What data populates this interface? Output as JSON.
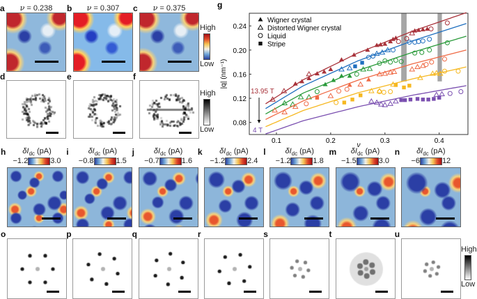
{
  "panels_top": [
    {
      "label": "a",
      "nu_prefix": "ν",
      "nu_value": " = 0.238"
    },
    {
      "label": "b",
      "nu_prefix": "ν",
      "nu_value": " = 0.307"
    },
    {
      "label": "c",
      "nu_prefix": "ν",
      "nu_value": " = 0.375"
    }
  ],
  "panels_fft_top": [
    {
      "label": "d"
    },
    {
      "label": "e"
    },
    {
      "label": "f"
    }
  ],
  "colorbar_color": {
    "high": "High",
    "low": "Low"
  },
  "colorbar_gray": {
    "high": "High",
    "low": "Low"
  },
  "panels_maps": [
    {
      "label": "h",
      "unit_main": "δI",
      "unit_sub": "dc",
      "unit_rest": " (pA)",
      "min": "−1.2",
      "max": "3.0"
    },
    {
      "label": "i",
      "unit_main": "δI",
      "unit_sub": "dc",
      "unit_rest": " (pA)",
      "min": "−0.8",
      "max": "1.5"
    },
    {
      "label": "j",
      "unit_main": "δI",
      "unit_sub": "dc",
      "unit_rest": " (pA)",
      "min": "−0.7",
      "max": "1.6"
    },
    {
      "label": "k",
      "unit_main": "δI",
      "unit_sub": "dc",
      "unit_rest": " (pA)",
      "min": "−1.2",
      "max": "2.4"
    },
    {
      "label": "l",
      "unit_main": "δI",
      "unit_sub": "dc",
      "unit_rest": " (pA)",
      "min": "−1.2",
      "max": "1.8"
    },
    {
      "label": "m",
      "unit_main": "δI",
      "unit_sub": "dc",
      "unit_rest": " (pA)",
      "min": "−1.5",
      "max": "3.0"
    },
    {
      "label": "n",
      "unit_main": "δI",
      "unit_sub": "dc",
      "unit_rest": " (pA)",
      "min": "−6",
      "max": "12"
    }
  ],
  "panels_fft": [
    {
      "label": "o"
    },
    {
      "label": "p"
    },
    {
      "label": "q"
    },
    {
      "label": "r"
    },
    {
      "label": "s"
    },
    {
      "label": "t"
    },
    {
      "label": "u"
    }
  ],
  "chart_data": {
    "panel_label": "g",
    "type": "scatter",
    "xlabel": "ν",
    "ylabel": "|q| (nm⁻¹)",
    "xlim": [
      0.05,
      0.453
    ],
    "ylim": [
      0.06,
      0.261
    ],
    "xticks": [
      "0.1",
      "0.2",
      "0.3",
      "0.4"
    ],
    "yticks": [
      "0.08",
      "0.12",
      "0.16",
      "0.20",
      "0.24"
    ],
    "grid": false,
    "legend_position": "top-left",
    "legend": [
      {
        "marker": "filled-triangle",
        "label": "Wigner crystal"
      },
      {
        "marker": "open-triangle",
        "label": "Distorted Wigner crystal"
      },
      {
        "marker": "open-circle",
        "label": "Liquid"
      },
      {
        "marker": "filled-square",
        "label": "Stripe"
      }
    ],
    "annotations": {
      "top_field": "13.95 T",
      "bottom_field": "4 T"
    },
    "shaded_bands": [
      {
        "x": [
          0.33,
          0.34
        ],
        "y": [
          0.148,
          0.261
        ]
      },
      {
        "x": [
          0.397,
          0.405
        ],
        "y": [
          0.148,
          0.261
        ]
      }
    ],
    "series": [
      {
        "color": "#a8323a",
        "fit": [
          [
            0.08,
            0.111
          ],
          [
            0.15,
            0.151
          ],
          [
            0.25,
            0.195
          ],
          [
            0.35,
            0.231
          ],
          [
            0.45,
            0.262
          ]
        ],
        "filled-triangle": [
          [
            0.135,
            0.144
          ],
          [
            0.147,
            0.148
          ],
          [
            0.16,
            0.153
          ],
          [
            0.175,
            0.161
          ],
          [
            0.188,
            0.164
          ],
          [
            0.2,
            0.168
          ],
          [
            0.22,
            0.184
          ],
          [
            0.243,
            0.192
          ],
          [
            0.268,
            0.2
          ],
          [
            0.285,
            0.208
          ],
          [
            0.292,
            0.209
          ],
          [
            0.3,
            0.21
          ],
          [
            0.31,
            0.214
          ],
          [
            0.315,
            0.218
          ],
          [
            0.32,
            0.22
          ],
          [
            0.355,
            0.232
          ],
          [
            0.362,
            0.233
          ],
          [
            0.37,
            0.234
          ],
          [
            0.378,
            0.235
          ]
        ],
        "open-triangle": [
          [
            0.093,
            0.118
          ],
          [
            0.114,
            0.132
          ],
          [
            0.16,
            0.16
          ],
          [
            0.35,
            0.228
          ]
        ],
        "open-circle": [
          [
            0.325,
            0.214
          ],
          [
            0.34,
            0.219
          ],
          [
            0.385,
            0.235
          ],
          [
            0.415,
            0.245
          ]
        ],
        "filled-square": []
      },
      {
        "color": "#1f6fbf",
        "fit": [
          [
            0.08,
            0.103
          ],
          [
            0.15,
            0.141
          ],
          [
            0.25,
            0.182
          ],
          [
            0.35,
            0.215
          ],
          [
            0.45,
            0.244
          ]
        ],
        "filled-triangle": [],
        "open-triangle": [
          [
            0.22,
            0.168
          ],
          [
            0.235,
            0.17
          ],
          [
            0.285,
            0.194
          ],
          [
            0.295,
            0.196
          ],
          [
            0.305,
            0.2
          ]
        ],
        "open-circle": [
          [
            0.27,
            0.188
          ],
          [
            0.278,
            0.19
          ],
          [
            0.315,
            0.2
          ],
          [
            0.345,
            0.213
          ],
          [
            0.355,
            0.213
          ],
          [
            0.362,
            0.214
          ],
          [
            0.37,
            0.215
          ],
          [
            0.382,
            0.218
          ]
        ],
        "filled-square": [
          [
            0.245,
            0.173
          ],
          [
            0.258,
            0.179
          ]
        ]
      },
      {
        "color": "#2a9a3a",
        "fit": [
          [
            0.08,
            0.094
          ],
          [
            0.15,
            0.129
          ],
          [
            0.25,
            0.166
          ],
          [
            0.35,
            0.196
          ],
          [
            0.45,
            0.223
          ]
        ],
        "filled-triangle": [
          [
            0.19,
            0.143
          ],
          [
            0.205,
            0.15
          ],
          [
            0.22,
            0.157
          ],
          [
            0.235,
            0.157
          ]
        ],
        "open-triangle": [
          [
            0.115,
            0.112
          ],
          [
            0.13,
            0.11
          ],
          [
            0.145,
            0.122
          ],
          [
            0.16,
            0.122
          ],
          [
            0.26,
            0.168
          ],
          [
            0.272,
            0.169
          ]
        ],
        "open-circle": [
          [
            0.175,
            0.131
          ],
          [
            0.248,
            0.16
          ],
          [
            0.29,
            0.178
          ],
          [
            0.3,
            0.182
          ],
          [
            0.31,
            0.18
          ],
          [
            0.32,
            0.183
          ],
          [
            0.33,
            0.181
          ],
          [
            0.355,
            0.195
          ],
          [
            0.368,
            0.196
          ],
          [
            0.382,
            0.2
          ],
          [
            0.415,
            0.212
          ]
        ],
        "filled-square": []
      },
      {
        "color": "#ef6a45",
        "fit": [
          [
            0.08,
            0.085
          ],
          [
            0.15,
            0.116
          ],
          [
            0.25,
            0.15
          ],
          [
            0.35,
            0.177
          ],
          [
            0.45,
            0.2
          ]
        ],
        "filled-triangle": [
          [
            0.235,
            0.142
          ],
          [
            0.27,
            0.151
          ]
        ],
        "open-triangle": [
          [
            0.097,
            0.1
          ],
          [
            0.115,
            0.097
          ],
          [
            0.135,
            0.106
          ],
          [
            0.2,
            0.124
          ],
          [
            0.255,
            0.143
          ],
          [
            0.29,
            0.16
          ],
          [
            0.3,
            0.161
          ],
          [
            0.31,
            0.163
          ],
          [
            0.317,
            0.164
          ],
          [
            0.35,
            0.168
          ],
          [
            0.36,
            0.172
          ],
          [
            0.37,
            0.174
          ]
        ],
        "open-circle": [
          [
            0.155,
            0.111
          ],
          [
            0.215,
            0.132
          ],
          [
            0.23,
            0.135
          ],
          [
            0.376,
            0.176
          ],
          [
            0.386,
            0.18
          ],
          [
            0.41,
            0.185
          ]
        ],
        "filled-square": [
          [
            0.175,
            0.121
          ]
        ]
      },
      {
        "color": "#f6b821",
        "fit": [
          [
            0.08,
            0.073
          ],
          [
            0.15,
            0.1
          ],
          [
            0.25,
            0.129
          ],
          [
            0.35,
            0.152
          ],
          [
            0.45,
            0.172
          ]
        ],
        "filled-triangle": [],
        "open-triangle": [
          [
            0.275,
            0.132
          ],
          [
            0.29,
            0.132
          ],
          [
            0.315,
            0.143
          ],
          [
            0.365,
            0.154
          ],
          [
            0.388,
            0.161
          ],
          [
            0.395,
            0.162
          ],
          [
            0.402,
            0.161
          ]
        ],
        "open-circle": [
          [
            0.21,
            0.113
          ],
          [
            0.29,
            0.131
          ],
          [
            0.298,
            0.13
          ],
          [
            0.31,
            0.131
          ],
          [
            0.41,
            0.165
          ],
          [
            0.435,
            0.165
          ]
        ],
        "filled-square": [
          [
            0.225,
            0.113
          ],
          [
            0.24,
            0.118
          ],
          [
            0.255,
            0.125
          ],
          [
            0.32,
            0.142
          ],
          [
            0.335,
            0.138
          ],
          [
            0.345,
            0.141
          ]
        ]
      },
      {
        "color": "#7a4fb0",
        "fit": [
          [
            0.08,
            0.061
          ],
          [
            0.15,
            0.083
          ],
          [
            0.25,
            0.106
          ],
          [
            0.35,
            0.125
          ],
          [
            0.45,
            0.141
          ]
        ],
        "filled-triangle": [],
        "open-triangle": [
          [
            0.275,
            0.115
          ],
          [
            0.285,
            0.113
          ],
          [
            0.293,
            0.11
          ],
          [
            0.3,
            0.109
          ],
          [
            0.31,
            0.111
          ],
          [
            0.32,
            0.115
          ],
          [
            0.395,
            0.126
          ],
          [
            0.405,
            0.127
          ]
        ],
        "open-circle": [
          [
            0.42,
            0.128
          ],
          [
            0.44,
            0.131
          ]
        ],
        "filled-square": [
          [
            0.33,
            0.117
          ],
          [
            0.337,
            0.117
          ],
          [
            0.347,
            0.118
          ],
          [
            0.36,
            0.119
          ],
          [
            0.37,
            0.118
          ],
          [
            0.38,
            0.118
          ],
          [
            0.39,
            0.119
          ],
          [
            0.4,
            0.121
          ]
        ]
      }
    ]
  }
}
